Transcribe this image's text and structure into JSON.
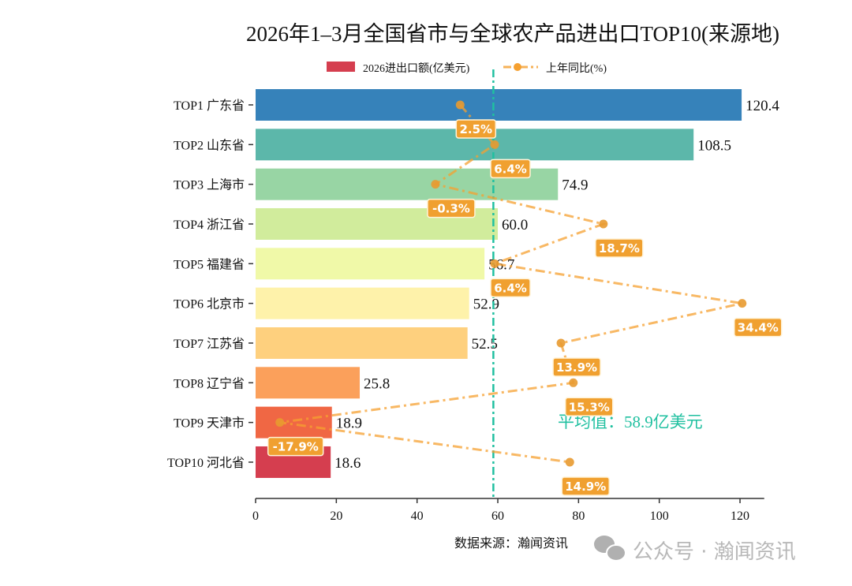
{
  "chart_data": {
    "type": "bar",
    "orientation": "horizontal",
    "title": "2026年1–3月全国省市与全球农产品进出口TOP10(来源地)",
    "categories": [
      "TOP1 广东省",
      "TOP2 山东省",
      "TOP3 上海市",
      "TOP4 浙江省",
      "TOP5 福建省",
      "TOP6 北京市",
      "TOP7 江苏省",
      "TOP8 辽宁省",
      "TOP9 天津市",
      "TOP10 河北省"
    ],
    "series": [
      {
        "name": "2026进出口额(亿美元)",
        "type": "bar",
        "values": [
          120.4,
          108.5,
          74.9,
          60.0,
          56.7,
          52.9,
          52.5,
          25.8,
          18.9,
          18.6
        ],
        "colors": [
          "#3682ba",
          "#5cb7aa",
          "#98d5a4",
          "#d1ec9c",
          "#f0f9a8",
          "#fef2aa",
          "#fed07e",
          "#fba05b",
          "#f06744",
          "#d53e4f"
        ]
      },
      {
        "name": "上年同比(%)",
        "type": "line",
        "values": [
          2.5,
          6.4,
          -0.3,
          18.7,
          6.4,
          34.4,
          13.9,
          15.3,
          -17.9,
          14.9
        ],
        "color": "#f5a030"
      }
    ],
    "value_labels": [
      "120.4",
      "108.5",
      "74.9",
      "60.0",
      "56.7",
      "52.9",
      "52.5",
      "25.8",
      "18.9",
      "18.6"
    ],
    "pct_labels": [
      "2.5%",
      "6.4%",
      "-0.3%",
      "18.7%",
      "6.4%",
      "34.4%",
      "13.9%",
      "15.3%",
      "-17.9%",
      "14.9%"
    ],
    "xlim": [
      0,
      126
    ],
    "xticks": [
      "0",
      "20",
      "40",
      "60",
      "80",
      "100",
      "120"
    ],
    "average": {
      "value": 58.9,
      "label": "平均值：58.9亿美元",
      "color": "#20c0a0"
    },
    "legend_position": "top",
    "grid": false
  },
  "source": "数据来源：瀚闻资讯",
  "watermark": "公众号 · 瀚闻资讯"
}
